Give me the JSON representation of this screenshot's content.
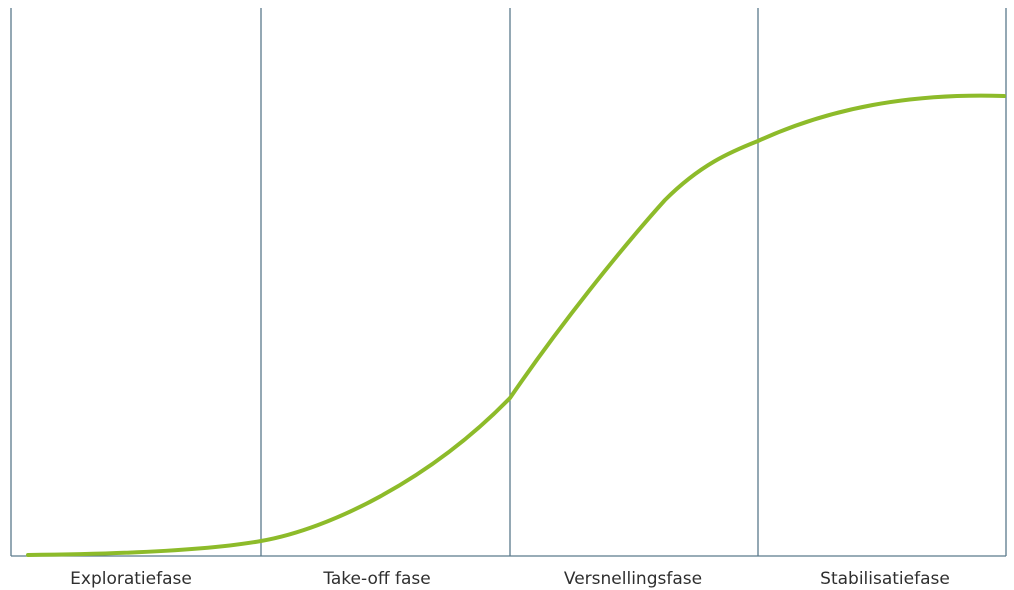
{
  "colors": {
    "curve": "#8dbb2a",
    "lines": "#5b7a8c",
    "text": "#2f2f2f"
  },
  "phases": [
    {
      "label": "Exploratiefase"
    },
    {
      "label": "Take-off fase"
    },
    {
      "label": "Versnellingsfase"
    },
    {
      "label": "Stabilisatiefase"
    }
  ]
}
